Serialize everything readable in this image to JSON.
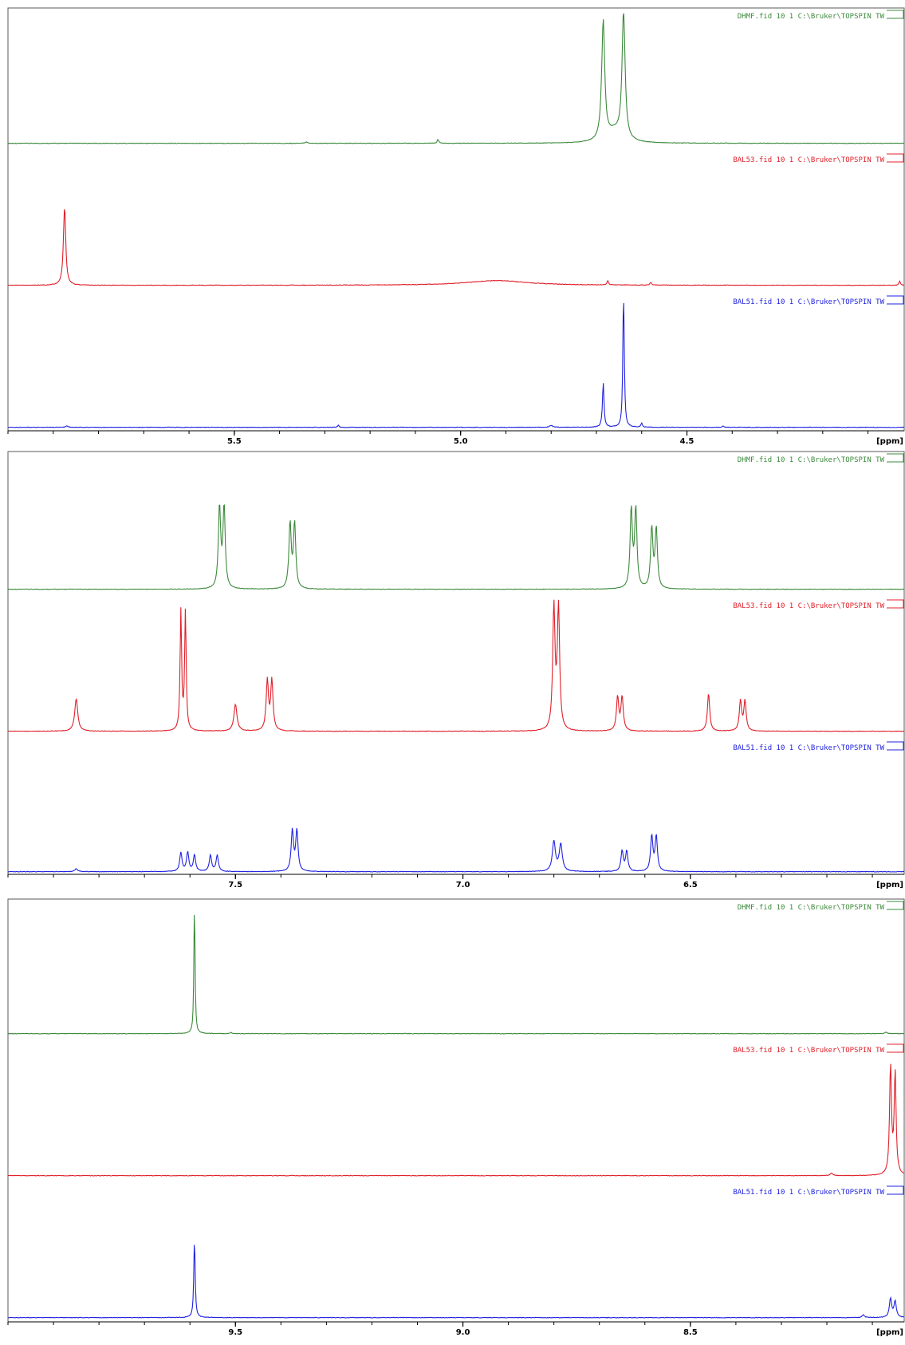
{
  "colors": {
    "green": "#3c8a3c",
    "red": "#e0202a",
    "blue": "#1f22e0",
    "axis": "#000000",
    "frame": "#5a5a5a"
  },
  "trace_labels": {
    "green": "DHMF.fid  10  1  C:\\Bruker\\TOPSPIN  TW",
    "red": "BAL53.fid  10  1  C:\\Bruker\\TOPSPIN  TW",
    "blue": "BAL51.fid  10  1  C:\\Bruker\\TOPSPIN  TW"
  },
  "chart_data": [
    {
      "type": "line",
      "xlabel": "[ppm]",
      "x_reversed": true,
      "xlim": [
        6.0,
        4.02
      ],
      "ticks": [
        5.5,
        5.0,
        4.5
      ],
      "tick_labels": [
        "5.5",
        "5.0",
        "4.5"
      ],
      "series": [
        {
          "name": "DHMF.fid  10  1  C:\\Bruker\\TOPSPIN  TW",
          "color": "green",
          "peaks": [
            [
              4.685,
              0.88,
              0.004
            ],
            [
              4.64,
              0.93,
              0.004
            ],
            [
              4.66,
              0.08,
              0.02
            ],
            [
              5.05,
              0.03,
              0.002
            ],
            [
              5.34,
              0.01,
              0.003
            ]
          ]
        },
        {
          "name": "BAL53.fid  10  1  C:\\Bruker\\TOPSPIN  TW",
          "color": "red",
          "peaks": [
            [
              5.875,
              0.58,
              0.003
            ],
            [
              4.92,
              0.035,
              0.08
            ],
            [
              4.675,
              0.03,
              0.002
            ],
            [
              4.58,
              0.02,
              0.002
            ],
            [
              4.03,
              0.03,
              0.002
            ]
          ]
        },
        {
          "name": "BAL51.fid  10  1  C:\\Bruker\\TOPSPIN  TW",
          "color": "blue",
          "peaks": [
            [
              4.64,
              1.0,
              0.0018
            ],
            [
              4.685,
              0.33,
              0.002
            ],
            [
              4.6,
              0.03,
              0.002
            ],
            [
              5.27,
              0.015,
              0.002
            ],
            [
              4.8,
              0.015,
              0.004
            ],
            [
              4.42,
              0.012,
              0.002
            ],
            [
              5.87,
              0.01,
              0.003
            ]
          ]
        }
      ]
    },
    {
      "type": "line",
      "xlabel": "[ppm]",
      "x_reversed": true,
      "xlim": [
        8.0,
        6.03
      ],
      "ticks": [
        7.5,
        7.0,
        6.5
      ],
      "tick_labels": [
        "7.5",
        "7.0",
        "6.5"
      ],
      "series": [
        {
          "name": "DHMF.fid  10  1  C:\\Bruker\\TOPSPIN  TW",
          "color": "green",
          "peaks": [
            [
              7.535,
              0.6,
              0.003
            ],
            [
              7.525,
              0.6,
              0.003
            ],
            [
              7.38,
              0.48,
              0.003
            ],
            [
              7.37,
              0.48,
              0.003
            ],
            [
              6.63,
              0.58,
              0.003
            ],
            [
              6.62,
              0.58,
              0.003
            ],
            [
              6.585,
              0.44,
              0.003
            ],
            [
              6.575,
              0.44,
              0.003
            ]
          ]
        },
        {
          "name": "BAL53.fid  10  1  C:\\Bruker\\TOPSPIN  TW",
          "color": "red",
          "peaks": [
            [
              7.85,
              0.24,
              0.004
            ],
            [
              7.62,
              0.88,
              0.002
            ],
            [
              7.61,
              0.88,
              0.002
            ],
            [
              7.5,
              0.2,
              0.004
            ],
            [
              7.43,
              0.37,
              0.003
            ],
            [
              7.42,
              0.37,
              0.003
            ],
            [
              6.8,
              0.9,
              0.003
            ],
            [
              6.79,
              0.9,
              0.003
            ],
            [
              6.66,
              0.25,
              0.003
            ],
            [
              6.65,
              0.25,
              0.003
            ],
            [
              6.46,
              0.28,
              0.003
            ],
            [
              6.39,
              0.22,
              0.003
            ],
            [
              6.38,
              0.22,
              0.003
            ]
          ]
        },
        {
          "name": "BAL51.fid  10  1  C:\\Bruker\\TOPSPIN  TW",
          "color": "blue",
          "peaks": [
            [
              7.62,
              0.14,
              0.003
            ],
            [
              7.605,
              0.14,
              0.003
            ],
            [
              7.59,
              0.12,
              0.003
            ],
            [
              7.555,
              0.12,
              0.003
            ],
            [
              7.54,
              0.12,
              0.003
            ],
            [
              7.375,
              0.3,
              0.003
            ],
            [
              7.365,
              0.3,
              0.003
            ],
            [
              6.8,
              0.22,
              0.004
            ],
            [
              6.785,
              0.2,
              0.004
            ],
            [
              6.65,
              0.15,
              0.003
            ],
            [
              6.64,
              0.15,
              0.003
            ],
            [
              6.585,
              0.26,
              0.003
            ],
            [
              6.575,
              0.26,
              0.003
            ],
            [
              7.85,
              0.02,
              0.004
            ]
          ]
        }
      ]
    },
    {
      "type": "line",
      "xlabel": "[ppm]",
      "x_reversed": true,
      "xlim": [
        10.0,
        8.03
      ],
      "ticks": [
        9.5,
        9.0,
        8.5
      ],
      "tick_labels": [
        "9.5",
        "9.0",
        "8.5"
      ],
      "series": [
        {
          "name": "DHMF.fid  10  1  C:\\Bruker\\TOPSPIN  TW",
          "color": "green",
          "peaks": [
            [
              9.59,
              0.98,
              0.0015
            ],
            [
              9.51,
              0.01,
              0.002
            ],
            [
              8.07,
              0.01,
              0.003
            ]
          ]
        },
        {
          "name": "BAL53.fid  10  1  C:\\Bruker\\TOPSPIN  TW",
          "color": "red",
          "peaks": [
            [
              8.06,
              0.8,
              0.0025
            ],
            [
              8.05,
              0.75,
              0.0025
            ],
            [
              8.19,
              0.02,
              0.003
            ]
          ]
        },
        {
          "name": "BAL51.fid  10  1  C:\\Bruker\\TOPSPIN  TW",
          "color": "blue",
          "peaks": [
            [
              9.59,
              0.58,
              0.0018
            ],
            [
              8.06,
              0.14,
              0.003
            ],
            [
              8.05,
              0.12,
              0.003
            ],
            [
              8.12,
              0.02,
              0.003
            ]
          ]
        }
      ]
    }
  ]
}
